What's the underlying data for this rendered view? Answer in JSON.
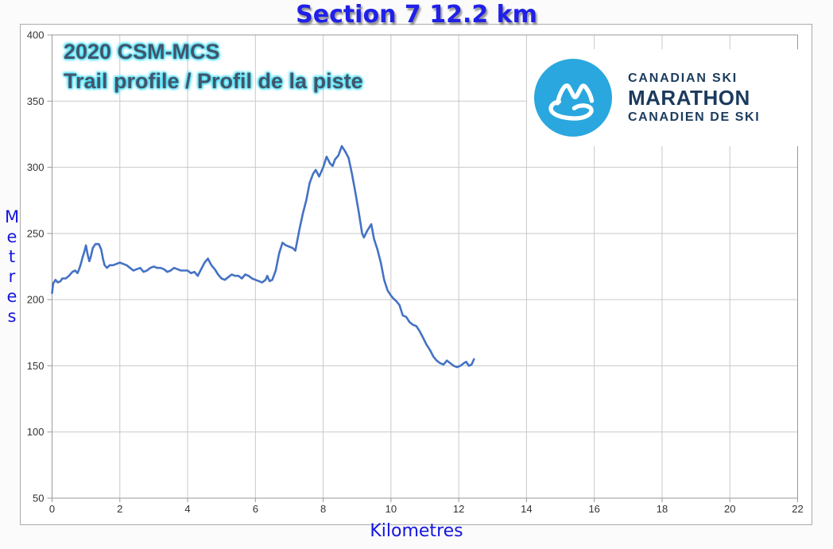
{
  "page": {
    "title": "Section 7  12.2 km",
    "subtitle_line1": "2020 CSM-MCS",
    "subtitle_line2": "Trail profile / Profil de la piste"
  },
  "logo": {
    "icon": "ski-trail-mountain-icon",
    "circle_color": "#2aa7de",
    "text_color": "#1b3a5c",
    "line1": "CANADIAN SKI",
    "line2": "MARATHON",
    "line3": "CANADIEN DE SKI"
  },
  "colors": {
    "title_blue": "#2020e8",
    "axis_label_blue": "#1515e0",
    "subtitle_slate": "#44546a",
    "subtitle_glow": "#44dcf2",
    "gridline": "#c9c9c9",
    "plot_border": "#9a9a9a",
    "tick_text": "#333333",
    "series_line": "#4472c4"
  },
  "chart_data": {
    "type": "line",
    "title": "Section 7  12.2 km",
    "xlabel": "Kilometres",
    "ylabel": "Metres",
    "xlim": [
      0,
      22
    ],
    "ylim": [
      50,
      400
    ],
    "x_ticks": [
      0,
      2,
      4,
      6,
      8,
      10,
      12,
      14,
      16,
      18,
      20,
      22
    ],
    "y_ticks": [
      50,
      100,
      150,
      200,
      250,
      300,
      350,
      400
    ],
    "grid": true,
    "legend_position": "none",
    "series": [
      {
        "name": "elevation-profile",
        "color": "#4472c4",
        "points": [
          [
            0.0,
            205
          ],
          [
            0.03,
            212
          ],
          [
            0.1,
            215
          ],
          [
            0.17,
            213
          ],
          [
            0.25,
            214
          ],
          [
            0.3,
            216
          ],
          [
            0.4,
            216
          ],
          [
            0.5,
            218
          ],
          [
            0.6,
            221
          ],
          [
            0.68,
            222
          ],
          [
            0.75,
            220
          ],
          [
            0.8,
            223
          ],
          [
            0.85,
            227
          ],
          [
            0.9,
            232
          ],
          [
            0.95,
            236
          ],
          [
            1.0,
            241
          ],
          [
            1.05,
            234
          ],
          [
            1.1,
            229
          ],
          [
            1.15,
            233
          ],
          [
            1.2,
            239
          ],
          [
            1.28,
            242
          ],
          [
            1.38,
            242
          ],
          [
            1.45,
            238
          ],
          [
            1.5,
            231
          ],
          [
            1.55,
            226
          ],
          [
            1.62,
            224
          ],
          [
            1.7,
            226
          ],
          [
            1.8,
            226
          ],
          [
            1.9,
            227
          ],
          [
            2.0,
            228
          ],
          [
            2.1,
            227
          ],
          [
            2.2,
            226
          ],
          [
            2.3,
            224
          ],
          [
            2.4,
            222
          ],
          [
            2.5,
            223
          ],
          [
            2.6,
            224
          ],
          [
            2.7,
            221
          ],
          [
            2.8,
            222
          ],
          [
            2.9,
            224
          ],
          [
            3.0,
            225
          ],
          [
            3.1,
            224
          ],
          [
            3.2,
            224
          ],
          [
            3.3,
            223
          ],
          [
            3.4,
            221
          ],
          [
            3.5,
            222
          ],
          [
            3.6,
            224
          ],
          [
            3.7,
            223
          ],
          [
            3.8,
            222
          ],
          [
            3.9,
            222
          ],
          [
            4.0,
            222
          ],
          [
            4.1,
            220
          ],
          [
            4.2,
            221
          ],
          [
            4.3,
            218
          ],
          [
            4.4,
            223
          ],
          [
            4.5,
            228
          ],
          [
            4.6,
            231
          ],
          [
            4.7,
            226
          ],
          [
            4.8,
            223
          ],
          [
            4.9,
            219
          ],
          [
            5.0,
            216
          ],
          [
            5.1,
            215
          ],
          [
            5.2,
            217
          ],
          [
            5.3,
            219
          ],
          [
            5.4,
            218
          ],
          [
            5.5,
            218
          ],
          [
            5.6,
            216
          ],
          [
            5.7,
            219
          ],
          [
            5.8,
            218
          ],
          [
            5.9,
            216
          ],
          [
            6.0,
            215
          ],
          [
            6.1,
            214
          ],
          [
            6.2,
            213
          ],
          [
            6.3,
            215
          ],
          [
            6.35,
            218
          ],
          [
            6.42,
            214
          ],
          [
            6.5,
            215
          ],
          [
            6.6,
            222
          ],
          [
            6.7,
            235
          ],
          [
            6.8,
            243
          ],
          [
            6.9,
            241
          ],
          [
            7.0,
            240
          ],
          [
            7.1,
            239
          ],
          [
            7.18,
            237
          ],
          [
            7.3,
            253
          ],
          [
            7.4,
            265
          ],
          [
            7.5,
            275
          ],
          [
            7.6,
            288
          ],
          [
            7.7,
            295
          ],
          [
            7.78,
            298
          ],
          [
            7.88,
            293
          ],
          [
            8.0,
            300
          ],
          [
            8.1,
            308
          ],
          [
            8.2,
            303
          ],
          [
            8.28,
            301
          ],
          [
            8.35,
            306
          ],
          [
            8.45,
            309
          ],
          [
            8.55,
            316
          ],
          [
            8.65,
            312
          ],
          [
            8.75,
            307
          ],
          [
            8.85,
            295
          ],
          [
            8.95,
            281
          ],
          [
            9.05,
            266
          ],
          [
            9.15,
            250
          ],
          [
            9.2,
            247
          ],
          [
            9.3,
            252
          ],
          [
            9.42,
            257
          ],
          [
            9.5,
            246
          ],
          [
            9.6,
            238
          ],
          [
            9.7,
            228
          ],
          [
            9.8,
            215
          ],
          [
            9.9,
            207
          ],
          [
            10.0,
            203
          ],
          [
            10.07,
            201
          ],
          [
            10.15,
            199
          ],
          [
            10.25,
            196
          ],
          [
            10.35,
            188
          ],
          [
            10.45,
            187
          ],
          [
            10.55,
            183
          ],
          [
            10.65,
            181
          ],
          [
            10.75,
            180
          ],
          [
            10.85,
            176
          ],
          [
            10.95,
            171
          ],
          [
            11.05,
            166
          ],
          [
            11.15,
            162
          ],
          [
            11.25,
            157
          ],
          [
            11.35,
            154
          ],
          [
            11.45,
            152
          ],
          [
            11.55,
            151
          ],
          [
            11.65,
            154
          ],
          [
            11.75,
            152
          ],
          [
            11.85,
            150
          ],
          [
            11.95,
            149
          ],
          [
            12.05,
            150
          ],
          [
            12.15,
            152
          ],
          [
            12.22,
            153
          ],
          [
            12.3,
            150
          ],
          [
            12.38,
            151
          ],
          [
            12.45,
            155
          ]
        ]
      }
    ]
  }
}
